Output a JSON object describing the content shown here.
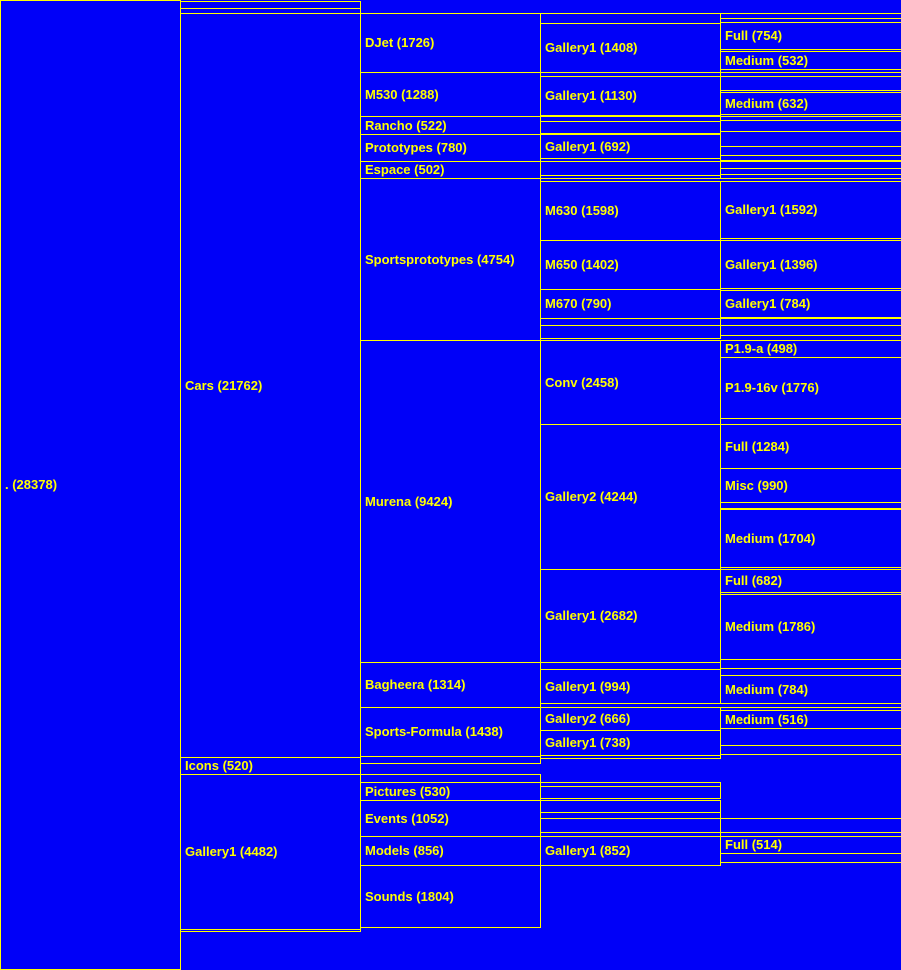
{
  "colors": {
    "background": "#0000f8",
    "border": "#ffff00",
    "text": "#ffff00"
  },
  "nodes": {
    "root": ". (28378)",
    "cars": "Cars (21762)",
    "icons": "Icons (520)",
    "gallery1_top": "Gallery1 (4482)",
    "djet": "DJet (1726)",
    "m530": "M530 (1288)",
    "rancho": "Rancho (522)",
    "prototypes": "Prototypes (780)",
    "espace": "Espace (502)",
    "sportsprototypes": "Sportsprototypes (4754)",
    "murena": "Murena (9424)",
    "bagheera": "Bagheera (1314)",
    "sports_formula": "Sports-Formula (1438)",
    "pictures": "Pictures (530)",
    "events": "Events (1052)",
    "models": "Models (856)",
    "sounds": "Sounds (1804)",
    "djet_gallery1": "Gallery1 (1408)",
    "m530_gallery1": "Gallery1 (1130)",
    "prototypes_gallery1": "Gallery1 (692)",
    "m630": "M630 (1598)",
    "m650": "M650 (1402)",
    "m670": "M670 (790)",
    "conv": "Conv (2458)",
    "murena_gallery2": "Gallery2 (4244)",
    "murena_gallery1": "Gallery1 (2682)",
    "bagheera_gallery1": "Gallery1 (994)",
    "sf_gallery2": "Gallery2 (666)",
    "sf_gallery1": "Gallery1 (738)",
    "models_gallery1": "Gallery1 (852)",
    "djet_full": "Full (754)",
    "djet_medium": "Medium (532)",
    "m530_medium": "Medium (632)",
    "m630_gallery1": "Gallery1 (1592)",
    "m650_gallery1": "Gallery1 (1396)",
    "m670_gallery1": "Gallery1 (784)",
    "p19a": "P1.9-a (498)",
    "p1916v": "P1.9-16v (1776)",
    "g2_full": "Full (1284)",
    "g2_misc": "Misc (990)",
    "g2_medium": "Medium (1704)",
    "g1_full": "Full (682)",
    "g1_medium": "Medium (1786)",
    "bagheera_medium": "Medium (784)",
    "sf_medium": "Medium (516)",
    "models_full": "Full (514)"
  }
}
